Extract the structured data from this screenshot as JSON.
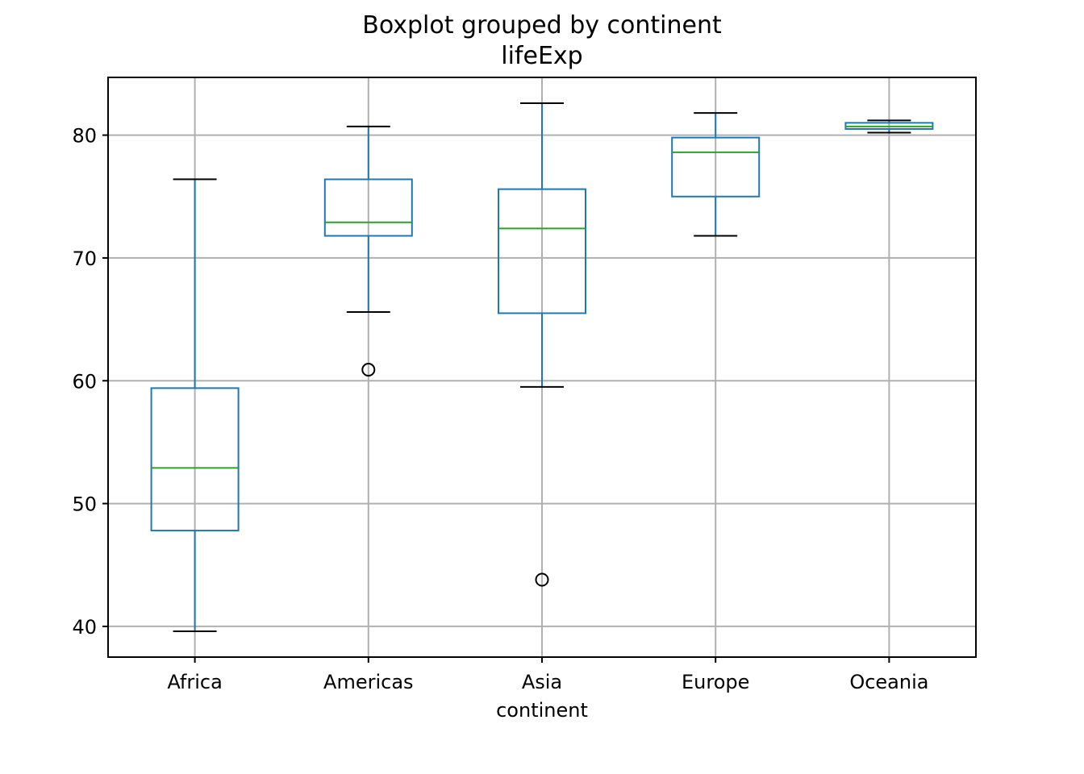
{
  "chart_data": {
    "type": "box",
    "suptitle": "Boxplot grouped by continent",
    "title": "lifeExp",
    "xlabel": "continent",
    "ylabel": "",
    "ylim": [
      37.5,
      84.7
    ],
    "yticks": [
      40,
      50,
      60,
      70,
      80
    ],
    "grid": true,
    "colors": {
      "box": "#1f77b4",
      "median": "#2ca02c",
      "cap": "#000000",
      "grid": "#b0b0b0"
    },
    "categories": [
      "Africa",
      "Americas",
      "Asia",
      "Europe",
      "Oceania"
    ],
    "boxes": [
      {
        "category": "Africa",
        "whislo": 39.6,
        "q1": 47.8,
        "med": 52.9,
        "q3": 59.4,
        "whishi": 76.4,
        "fliers": []
      },
      {
        "category": "Americas",
        "whislo": 65.6,
        "q1": 71.8,
        "med": 72.9,
        "q3": 76.4,
        "whishi": 80.7,
        "fliers": [
          60.9
        ]
      },
      {
        "category": "Asia",
        "whislo": 59.5,
        "q1": 65.5,
        "med": 72.4,
        "q3": 75.6,
        "whishi": 82.6,
        "fliers": [
          43.8
        ]
      },
      {
        "category": "Europe",
        "whislo": 71.8,
        "q1": 75.0,
        "med": 78.6,
        "q3": 79.8,
        "whishi": 81.8,
        "fliers": []
      },
      {
        "category": "Oceania",
        "whislo": 80.2,
        "q1": 80.5,
        "med": 80.7,
        "q3": 81.0,
        "whishi": 81.2,
        "fliers": []
      }
    ]
  }
}
